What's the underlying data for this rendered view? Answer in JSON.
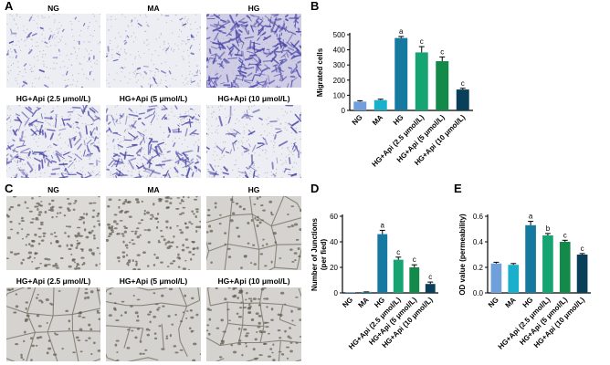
{
  "panels": {
    "A": {
      "letter": "A",
      "images": [
        {
          "label": "NG",
          "style": "sparse-purple"
        },
        {
          "label": "MA",
          "style": "sparse-purple"
        },
        {
          "label": "HG",
          "style": "dense-purple"
        },
        {
          "label": "HG+Api (2.5 μmol/L)",
          "style": "medium-purple"
        },
        {
          "label": "HG+Api (5 μmol/L)",
          "style": "medium-purple"
        },
        {
          "label": "HG+Api (10 μmol/L)",
          "style": "light-purple"
        }
      ]
    },
    "B": {
      "letter": "B"
    },
    "C": {
      "letter": "C",
      "images": [
        {
          "label": "NG",
          "style": "cells"
        },
        {
          "label": "MA",
          "style": "cells"
        },
        {
          "label": "HG",
          "style": "tubes"
        },
        {
          "label": "HG+Api (2.5 μmol/L)",
          "style": "tubes"
        },
        {
          "label": "HG+Api (5 μmol/L)",
          "style": "tubes-sparse"
        },
        {
          "label": "HG+Api (10 μmol/L)",
          "style": "cells-tubes"
        }
      ]
    },
    "D": {
      "letter": "D"
    },
    "E": {
      "letter": "E"
    }
  },
  "colors": {
    "bars": [
      "#6fa0dc",
      "#1ab0cc",
      "#167aa0",
      "#16a473",
      "#138a4a",
      "#0a3f5a"
    ],
    "purple_stain": "#4b47a8",
    "phase_bg": "#d8d6d2"
  },
  "chart_data": [
    {
      "id": "B",
      "type": "bar",
      "categories": [
        "NG",
        "MA",
        "HG",
        "HG+Api (2.5 μmol/L)",
        "HG+Api (5 μmol/L)",
        "HG+Api (10 μmol/L)"
      ],
      "values": [
        58,
        68,
        478,
        383,
        325,
        138
      ],
      "errors": [
        6,
        6,
        10,
        38,
        28,
        8
      ],
      "annotations": [
        "",
        "",
        "a",
        "c",
        "c",
        "c"
      ],
      "ylabel": "Migrated cells",
      "ylim": [
        0,
        500
      ],
      "yticks": [
        0,
        100,
        200,
        300,
        400,
        500
      ]
    },
    {
      "id": "D",
      "type": "bar",
      "categories": [
        "NG",
        "MA",
        "HG",
        "HG+Api (2.5 μmol/L)",
        "HG+Api (5 μmol/L)",
        "HG+Api (10 μmol/L)"
      ],
      "values": [
        0,
        0.5,
        46,
        26,
        20,
        7
      ],
      "errors": [
        0,
        0.3,
        3,
        2,
        2,
        1.5
      ],
      "annotations": [
        "",
        "",
        "a",
        "c",
        "c",
        "c"
      ],
      "ylabel": "Number of Junctions",
      "ylabel2": "(per fied)",
      "ylim": [
        0,
        60
      ],
      "yticks": [
        0,
        20,
        40,
        60
      ]
    },
    {
      "id": "E",
      "type": "bar",
      "categories": [
        "NG",
        "MA",
        "HG",
        "HG+Api (2.5 μmol/L)",
        "HG+Api (5 μmol/L)",
        "HG+Api (10 μmol/L)"
      ],
      "values": [
        0.23,
        0.22,
        0.53,
        0.45,
        0.4,
        0.3
      ],
      "errors": [
        0.01,
        0.01,
        0.03,
        0.015,
        0.012,
        0.008
      ],
      "annotations": [
        "",
        "",
        "a",
        "b",
        "c",
        "c"
      ],
      "ylabel": "OD value (permeability)",
      "ylim": [
        0,
        0.6
      ],
      "yticks": [
        0.0,
        0.2,
        0.4,
        0.6
      ],
      "ytick_labels": [
        "0.0",
        "0.2",
        "0.4",
        "0.6"
      ]
    }
  ]
}
